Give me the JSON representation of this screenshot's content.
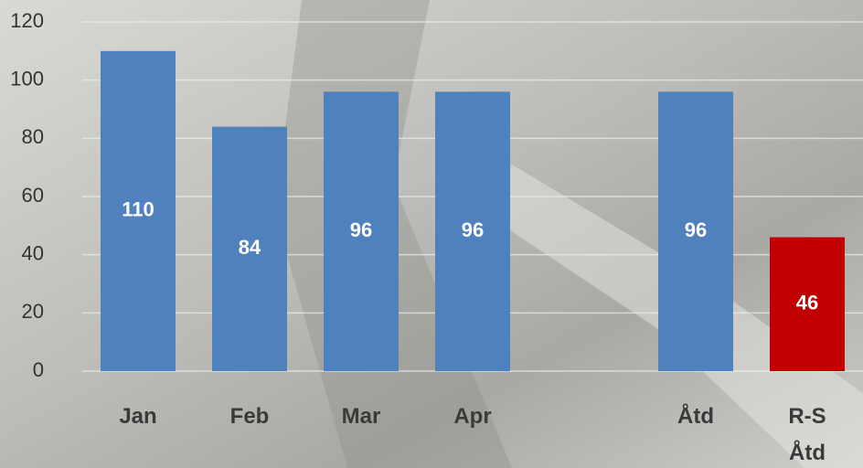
{
  "chart_data": {
    "type": "bar",
    "categories": [
      "Jan",
      "Feb",
      "Mar",
      "Apr",
      null,
      "Åtd",
      "R-S Åtd"
    ],
    "values": [
      110,
      84,
      96,
      96,
      null,
      96,
      46
    ],
    "colors": [
      "#4f81bd",
      "#4f81bd",
      "#4f81bd",
      "#4f81bd",
      null,
      "#4f81bd",
      "#c00000"
    ],
    "ylim": [
      0,
      120
    ],
    "yticks": [
      0,
      20,
      40,
      60,
      80,
      100,
      120
    ],
    "grid": true
  }
}
